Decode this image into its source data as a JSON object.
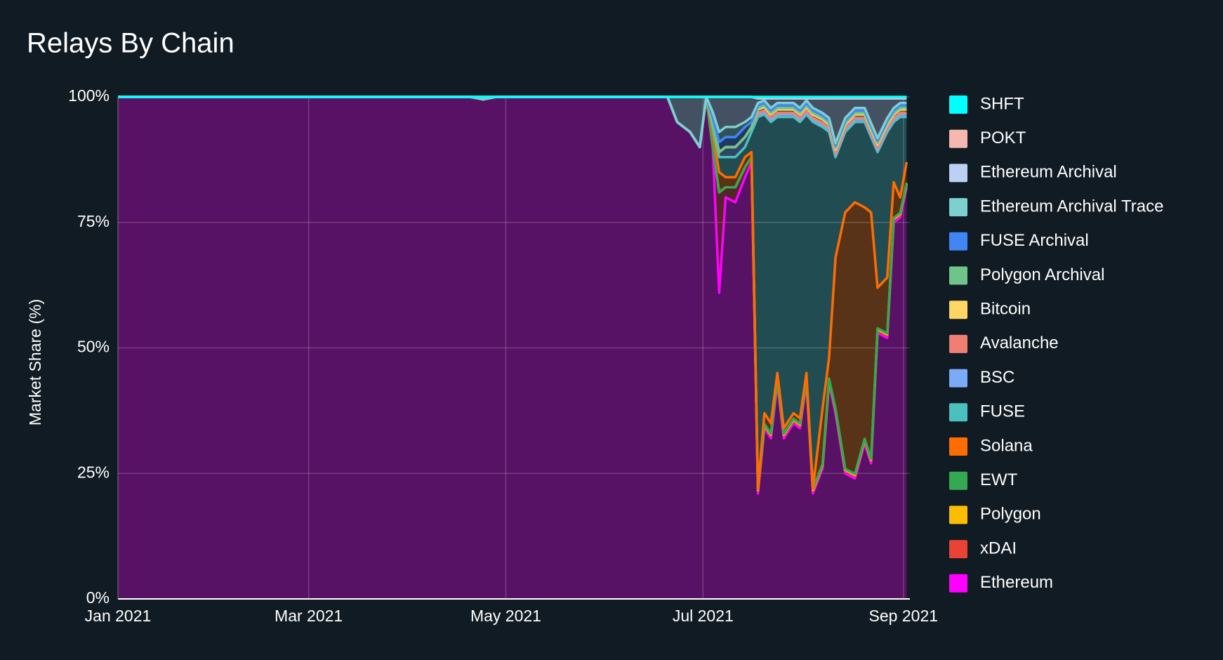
{
  "chart_data": {
    "type": "stacked_area",
    "title": "Relays By Chain",
    "y_label": "Market Share (%)",
    "x": [
      "2021-01-01",
      "2021-04-20",
      "2021-04-24",
      "2021-04-28",
      "2021-06-20",
      "2021-06-23",
      "2021-06-27",
      "2021-06-30",
      "2021-07-02",
      "2021-07-04",
      "2021-07-06",
      "2021-07-08",
      "2021-07-11",
      "2021-07-14",
      "2021-07-16",
      "2021-07-18",
      "2021-07-20",
      "2021-07-22",
      "2021-07-24",
      "2021-07-26",
      "2021-07-29",
      "2021-07-31",
      "2021-08-02",
      "2021-08-04",
      "2021-08-07",
      "2021-08-09",
      "2021-08-11",
      "2021-08-14",
      "2021-08-17",
      "2021-08-20",
      "2021-08-22",
      "2021-08-24",
      "2021-08-27",
      "2021-08-29",
      "2021-08-31",
      "2021-09-02"
    ],
    "xlim": [
      "2021-01-01",
      "2021-09-03"
    ],
    "xticks": [
      {
        "value": "2021-01-01",
        "label": "Jan 2021"
      },
      {
        "value": "2021-03-01",
        "label": "Mar 2021"
      },
      {
        "value": "2021-05-01",
        "label": "May 2021"
      },
      {
        "value": "2021-07-01",
        "label": "Jul 2021"
      },
      {
        "value": "2021-09-01",
        "label": "Sep 2021"
      }
    ],
    "ylim": [
      0,
      100
    ],
    "yticks": [
      {
        "value": 0,
        "label": "0%"
      },
      {
        "value": 25,
        "label": "25%"
      },
      {
        "value": 50,
        "label": "50%"
      },
      {
        "value": 75,
        "label": "75%"
      },
      {
        "value": 100,
        "label": "100%"
      }
    ],
    "grid": true,
    "legend": "right",
    "series": [
      {
        "name": "SHFT",
        "color": "#00ffff",
        "values": [
          0,
          0,
          0,
          0,
          0,
          0,
          0,
          0,
          0,
          0,
          0,
          0,
          0,
          0,
          0,
          0.1,
          0.1,
          0.1,
          0.1,
          0.1,
          0.1,
          0.1,
          0.1,
          0.1,
          0.1,
          0.1,
          0.1,
          0.1,
          0.1,
          0.1,
          0.1,
          0.1,
          0.1,
          0.1,
          0.1,
          0.1
        ]
      },
      {
        "name": "POKT",
        "color": "#f4b8b0",
        "values": [
          0,
          0,
          0,
          0,
          0,
          0,
          0,
          0,
          0,
          0,
          0,
          0,
          0,
          0,
          0,
          0.2,
          0.2,
          0.2,
          0.2,
          0.2,
          0.2,
          0.2,
          0.2,
          0.2,
          0.2,
          0.2,
          0.2,
          0.2,
          0.2,
          0.2,
          0.2,
          0.2,
          0.2,
          0.2,
          0.2,
          0.2
        ]
      },
      {
        "name": "Ethereum Archival",
        "color": "#bcd0f5",
        "values": [
          0,
          0,
          0.5,
          0,
          0,
          5,
          7,
          10,
          0,
          3,
          7,
          6,
          6,
          5,
          4,
          0.9,
          0.4,
          1.9,
          0.9,
          0.9,
          0.9,
          1.9,
          0.4,
          1.9,
          2.9,
          3.9,
          8.9,
          3.9,
          1.9,
          1.9,
          4.9,
          7.9,
          3.9,
          1.9,
          0.9,
          0.9
        ]
      },
      {
        "name": "Ethereum Archival Trace",
        "color": "#7ecfd0",
        "values": [
          0,
          0,
          0,
          0,
          0,
          0,
          0,
          0,
          0,
          1,
          2,
          2,
          2,
          1,
          1,
          0.5,
          0.5,
          0.5,
          0.5,
          0.5,
          0.5,
          0.5,
          0.5,
          0.5,
          0.5,
          0.5,
          0.5,
          0.5,
          0.5,
          0.5,
          0.5,
          0.5,
          0.5,
          0.5,
          0.5,
          0.5
        ]
      },
      {
        "name": "FUSE Archival",
        "color": "#4285f4",
        "values": [
          0,
          0,
          0,
          0,
          0,
          0,
          0,
          0,
          0,
          1,
          2,
          2,
          2,
          2,
          1,
          0.5,
          0.5,
          0.5,
          0.5,
          0.5,
          0.5,
          0.5,
          0.5,
          0.5,
          0.5,
          0.5,
          0.5,
          0.5,
          0.5,
          0.5,
          0.5,
          0.5,
          0.5,
          0.5,
          0.5,
          0.5
        ]
      },
      {
        "name": "Polygon Archival",
        "color": "#6fc48a",
        "values": [
          0,
          0,
          0,
          0,
          0,
          0,
          0,
          0,
          0,
          0,
          0,
          0,
          0,
          0,
          0,
          0.3,
          0.3,
          0.3,
          0.3,
          0.3,
          0.3,
          0.3,
          0.3,
          0.3,
          0.3,
          0.3,
          0.3,
          0.3,
          0.3,
          0.3,
          0.3,
          0.3,
          0.3,
          0.3,
          0.3,
          0.3
        ]
      },
      {
        "name": "Bitcoin",
        "color": "#fdd663",
        "values": [
          0,
          0,
          0,
          0,
          0,
          0,
          0,
          0,
          0,
          0,
          0,
          0,
          0,
          0,
          0,
          0.7,
          0.7,
          0.7,
          0.7,
          0.7,
          0.7,
          0.7,
          0.7,
          0.7,
          0.7,
          0.7,
          0.7,
          0.7,
          0.7,
          0.7,
          0.7,
          0.7,
          0.7,
          0.7,
          0.7,
          0.7
        ]
      },
      {
        "name": "Avalanche",
        "color": "#ee7f72",
        "values": [
          0,
          0,
          0,
          0,
          0,
          0,
          0,
          0,
          0,
          0,
          0,
          0,
          0,
          0,
          0,
          0.3,
          0.3,
          0.3,
          0.3,
          0.3,
          0.3,
          0.3,
          0.3,
          0.3,
          0.3,
          0.3,
          0.3,
          0.3,
          0.3,
          0.3,
          0.3,
          0.3,
          0.3,
          0.3,
          0.3,
          0.3
        ]
      },
      {
        "name": "BSC",
        "color": "#7baaf7",
        "values": [
          0,
          0,
          0,
          0,
          0,
          0,
          0,
          0,
          0,
          1,
          1,
          2,
          2,
          2,
          1,
          0.5,
          0.5,
          0.5,
          0.5,
          0.5,
          0.5,
          0.5,
          0.5,
          0.5,
          0.5,
          0.5,
          0.5,
          0.5,
          0.5,
          0.5,
          0.5,
          0.5,
          0.5,
          0.5,
          0.5,
          0.5
        ]
      },
      {
        "name": "FUSE",
        "color": "#4ac0c0",
        "values": [
          0,
          0,
          0,
          0,
          0,
          0,
          0,
          0,
          0,
          1,
          3,
          4,
          4,
          2,
          4,
          74,
          59.5,
          60,
          51,
          62,
          59,
          59,
          51.5,
          73,
          56,
          45,
          20,
          16,
          16,
          17,
          15,
          27,
          29,
          12,
          16,
          9
        ]
      },
      {
        "name": "Solana",
        "color": "#ff6d01",
        "values": [
          0,
          0,
          0,
          0,
          0,
          0,
          0,
          0,
          0,
          3,
          4,
          2,
          2,
          2,
          1,
          0.1,
          2.1,
          2.1,
          1.1,
          1.1,
          1.1,
          1.1,
          1.1,
          0.1,
          11.1,
          4.1,
          30.1,
          51.1,
          54.1,
          46.1,
          49.1,
          8.1,
          11.1,
          7.1,
          3.1,
          4.1
        ]
      },
      {
        "name": "EWT",
        "color": "#34a853",
        "values": [
          0,
          0,
          0,
          0,
          0,
          0,
          0,
          0,
          0,
          0,
          0,
          0,
          0,
          0,
          0,
          0.2,
          0.2,
          0.2,
          0.2,
          0.2,
          0.2,
          0.2,
          0.2,
          0.2,
          0.2,
          0.2,
          0.2,
          0.2,
          0.2,
          0.2,
          0.2,
          0.2,
          0.2,
          0.2,
          0.2,
          0.2
        ]
      },
      {
        "name": "Polygon",
        "color": "#fbbc04",
        "values": [
          0,
          0,
          0,
          0,
          0,
          0,
          0,
          0,
          0,
          0,
          0,
          0,
          0,
          0,
          0,
          0.2,
          0.2,
          0.2,
          0.2,
          0.2,
          0.2,
          0.2,
          0.2,
          0.2,
          0.2,
          0.2,
          0.2,
          0.2,
          0.2,
          0.2,
          0.2,
          0.2,
          0.2,
          0.2,
          0.2,
          0.2
        ]
      },
      {
        "name": "xDAI",
        "color": "#ea4335",
        "values": [
          0,
          0,
          0,
          0,
          0,
          0,
          0,
          0,
          0,
          0,
          20,
          2,
          3,
          2,
          1,
          0.5,
          0.5,
          0.5,
          0.5,
          0.5,
          0.5,
          0.5,
          0.5,
          0.5,
          0.5,
          0.5,
          0.5,
          0.5,
          0.5,
          0.5,
          0.5,
          0.5,
          0.5,
          0.5,
          0.5,
          0.5
        ]
      },
      {
        "name": "Ethereum",
        "color": "#ff00ff",
        "values": [
          100,
          100,
          99.5,
          100,
          100,
          95,
          93,
          90,
          100,
          90,
          61,
          80,
          79,
          84,
          87,
          21,
          34,
          32,
          43,
          32,
          35,
          34,
          43,
          21,
          26,
          43,
          37,
          25,
          24,
          31,
          27,
          53,
          52,
          75,
          76,
          82
        ]
      }
    ]
  }
}
